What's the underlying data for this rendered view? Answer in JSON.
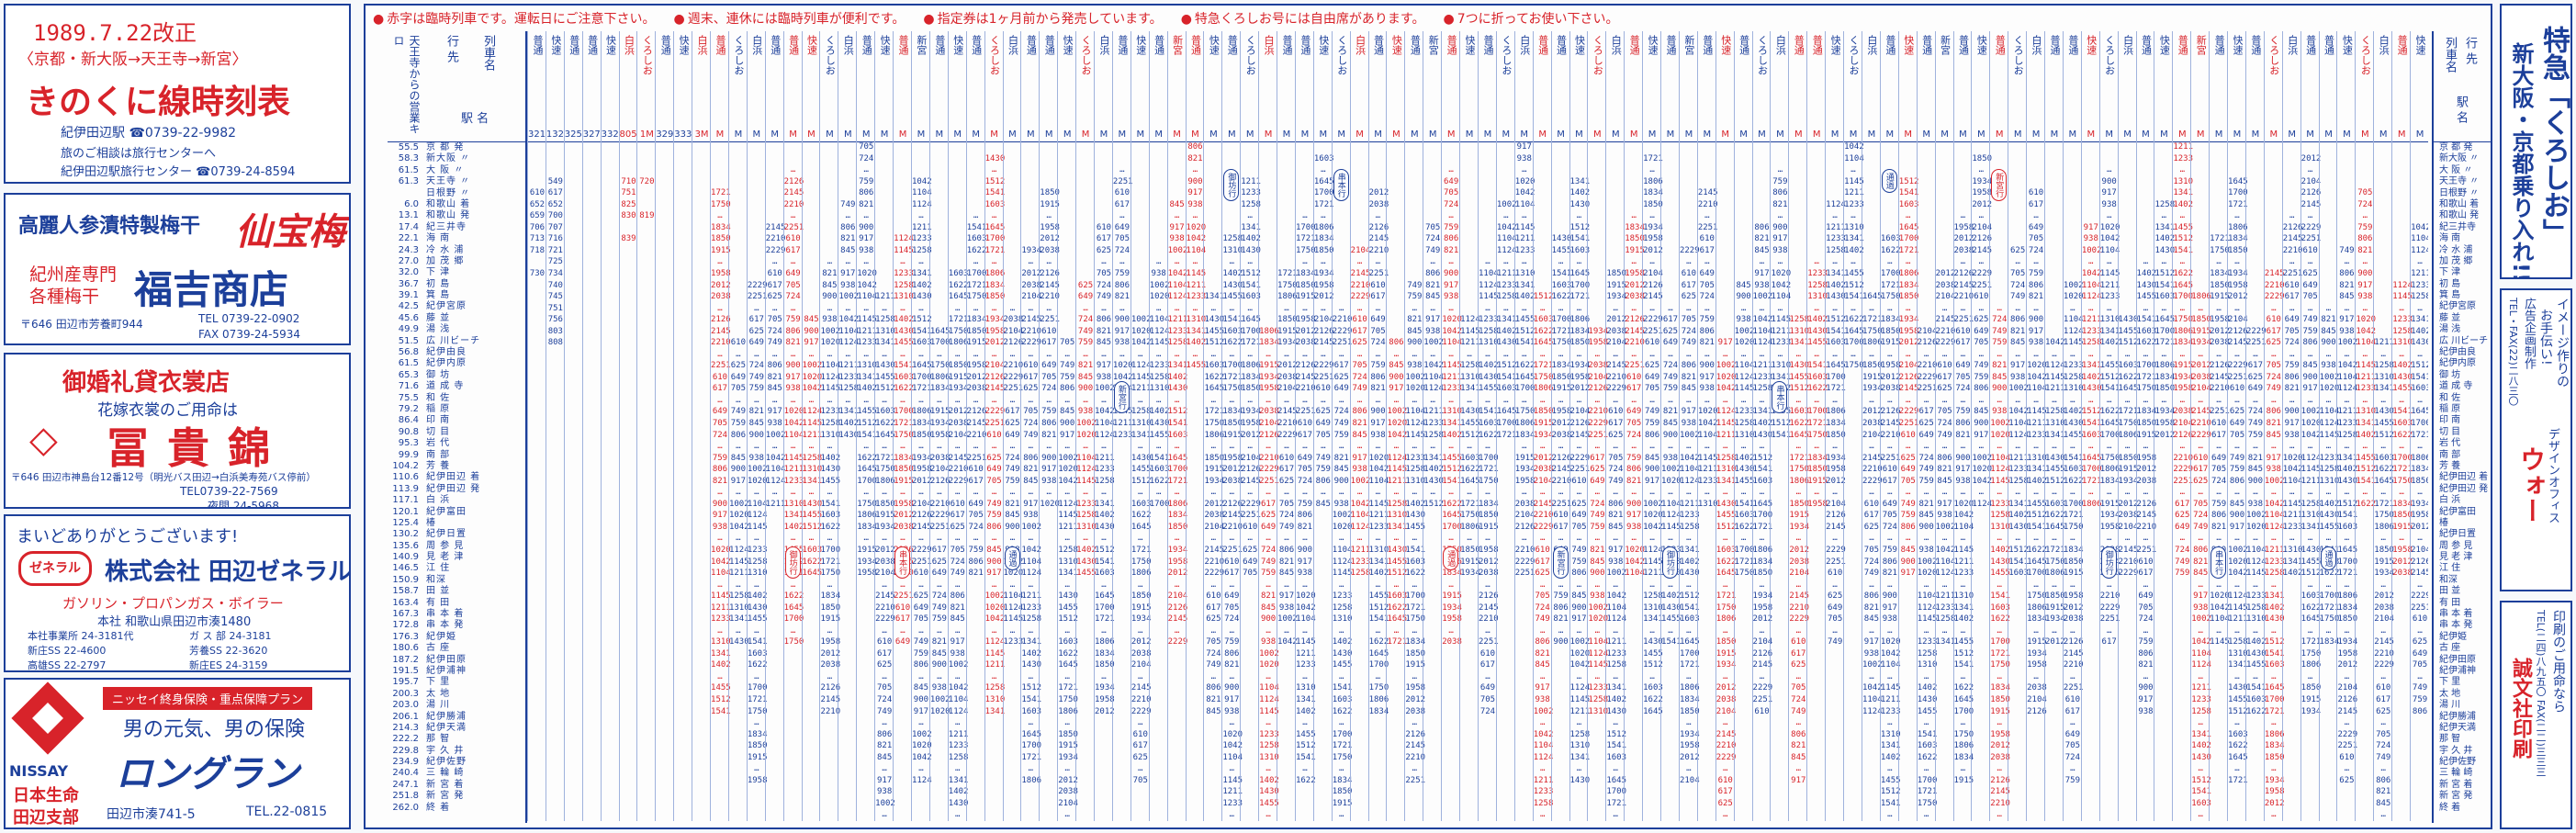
{
  "colors": {
    "blue": "#1c3f9a",
    "red": "#d8232a"
  },
  "header": {
    "date": "1989.7.22改正",
    "route_sub": "〈京都・新大阪→天王寺→新宮〉",
    "title": "きのくに線時刻表",
    "station_contact": "紀伊田辺駅 ☎0739-22-9982",
    "travel_note": "旅のご相談は旅行センターへ",
    "travel_center": "紀伊田辺駅旅行センター ☎0739-24-8594"
  },
  "ads": {
    "umeboshi": {
      "tagline": "高麗人参漬特製梅干",
      "brand": "仙宝梅",
      "shop_label_1": "紀州産専門",
      "shop_label_2": "各種梅干",
      "shop_name": "福吉商店",
      "address": "〒646 田辺市芳養町944",
      "tel": "TEL 0739-22-0902",
      "fax": "FAX 0739-24-5934"
    },
    "kimono": {
      "heading": "御婚礼貸衣裳店",
      "subheading": "花嫁衣裳のご用命は",
      "shop_name": "冨貴錦",
      "address": "〒646 田辺市神島台12番12号（明光バス田辺→白浜美寿苑バス停前）",
      "tel": "TEL0739-22-7569",
      "tel2": "夜間 24-5968"
    },
    "general": {
      "greeting": "まいどありがとうございます!",
      "company": "株式会社 田辺ゼネラル",
      "logo": "ゼネラル",
      "products": "ガソリン・プロパンガス・ボイラー",
      "head_office": "本社 和歌山県田辺市湊1480",
      "branches": [
        "本社事業所 24-3181代",
        "ガ ス 部 24-3181",
        "新庄SS 22-4600",
        "芳養SS 22-3620",
        "高雄SS 22-2797",
        "新庄ES 24-3159"
      ]
    },
    "nissay": {
      "plan": "ニッセイ終身保険・重点保障プラン",
      "slogan": "男の元気、男の保険",
      "product": "ロングラン",
      "brand": "NISSAY",
      "company": "日本生命",
      "branch": "田辺支部",
      "address": "田辺市湊741-5",
      "tel": "TEL.22-0815"
    }
  },
  "notes": [
    "赤字は臨時列車です。運転日にご注意下さい。",
    "週末、連休には臨時列車が便利です。",
    "指定券は1ヶ月前から発売しています。",
    "特急くろしお号には自由席があります。",
    "7つに折ってお使い下さい。"
  ],
  "timetable": {
    "origin_label": "行 先",
    "train_name_label": "列車名",
    "station_label": "駅 名",
    "origin_dep_label": "天王寺からの営業キロ",
    "stations": [
      {
        "km": "55.5",
        "name": "京 都 発"
      },
      {
        "km": "58.3",
        "name": "新大阪 〃"
      },
      {
        "km": "61.5",
        "name": "大 阪 〃"
      },
      {
        "km": "61.3",
        "name": "天王寺 〃"
      },
      {
        "km": "",
        "name": "日根野 〃"
      },
      {
        "km": "6.0",
        "name": "和歌山 着"
      },
      {
        "km": "13.1",
        "name": "和歌山 発"
      },
      {
        "km": "17.4",
        "name": "紀三井寺"
      },
      {
        "km": "22.1",
        "name": "海 南"
      },
      {
        "km": "24.3",
        "name": "冷 水 浦"
      },
      {
        "km": "27.0",
        "name": "加 茂 郷"
      },
      {
        "km": "32.0",
        "name": "下 津"
      },
      {
        "km": "36.7",
        "name": "初 島"
      },
      {
        "km": "39.1",
        "name": "箕 島"
      },
      {
        "km": "42.5",
        "name": "紀伊宮原"
      },
      {
        "km": "45.6",
        "name": "藤 並"
      },
      {
        "km": "49.9",
        "name": "湯 浅"
      },
      {
        "km": "51.5",
        "name": "広 川ビーチ"
      },
      {
        "km": "56.8",
        "name": "紀伊由良"
      },
      {
        "km": "61.5",
        "name": "紀伊内原"
      },
      {
        "km": "65.3",
        "name": "御 坊"
      },
      {
        "km": "71.6",
        "name": "道 成 寺"
      },
      {
        "km": "75.5",
        "name": "和 佐"
      },
      {
        "km": "79.2",
        "name": "稲 原"
      },
      {
        "km": "86.4",
        "name": "印 南"
      },
      {
        "km": "90.8",
        "name": "切 目"
      },
      {
        "km": "95.3",
        "name": "岩 代"
      },
      {
        "km": "99.9",
        "name": "南 部"
      },
      {
        "km": "104.2",
        "name": "芳 養"
      },
      {
        "km": "110.6",
        "name": "紀伊田辺 着"
      },
      {
        "km": "113.9",
        "name": "紀伊田辺 発"
      },
      {
        "km": "117.1",
        "name": "白 浜"
      },
      {
        "km": "120.1",
        "name": "紀伊富田"
      },
      {
        "km": "125.4",
        "name": "椿"
      },
      {
        "km": "130.2",
        "name": "紀伊日置"
      },
      {
        "km": "135.6",
        "name": "周 参 見"
      },
      {
        "km": "140.9",
        "name": "見 老 津"
      },
      {
        "km": "146.5",
        "name": "江 住"
      },
      {
        "km": "150.9",
        "name": "和深"
      },
      {
        "km": "158.7",
        "name": "田 並"
      },
      {
        "km": "163.4",
        "name": "有 田"
      },
      {
        "km": "167.3",
        "name": "串 本 着"
      },
      {
        "km": "172.8",
        "name": "串 本 発"
      },
      {
        "km": "176.3",
        "name": "紀伊姫"
      },
      {
        "km": "180.6",
        "name": "古 座"
      },
      {
        "km": "187.2",
        "name": "紀伊田原"
      },
      {
        "km": "191.5",
        "name": "紀伊浦神"
      },
      {
        "km": "195.7",
        "name": "下 里"
      },
      {
        "km": "200.3",
        "name": "太 地"
      },
      {
        "km": "203.0",
        "name": "湯 川"
      },
      {
        "km": "206.1",
        "name": "紀伊勝浦"
      },
      {
        "km": "214.3",
        "name": "紀伊天満"
      },
      {
        "km": "222.2",
        "name": "那 智"
      },
      {
        "km": "229.8",
        "name": "宇 久 井"
      },
      {
        "km": "234.9",
        "name": "紀伊佐野"
      },
      {
        "km": "240.4",
        "name": "三 輪 崎"
      },
      {
        "km": "247.1",
        "name": "新 宮 着"
      },
      {
        "km": "251.8",
        "name": "新 宮 発"
      },
      {
        "km": "262.0",
        "name": "終 着"
      }
    ],
    "trains": [
      {
        "kind": "普通",
        "num": "321M",
        "color": "blue",
        "times": [
          "",
          "",
          "",
          "",
          "610",
          "652",
          "659",
          "706",
          "713",
          "718",
          "",
          "730",
          "",
          "",
          "",
          "",
          "",
          "",
          "",
          "",
          "",
          "",
          "",
          "",
          "",
          "",
          "",
          "",
          "",
          "",
          "",
          "",
          "",
          "",
          "",
          "",
          "",
          "",
          "",
          "",
          "",
          "",
          "",
          "",
          "",
          "",
          "",
          "",
          "",
          "",
          "",
          "",
          "",
          "",
          "",
          "",
          "",
          "",
          ""
        ]
      },
      {
        "kind": "快速",
        "num": "1323M",
        "color": "blue",
        "times": [
          "",
          "",
          "",
          "549",
          "617",
          "652",
          "700",
          "707",
          "716",
          "721",
          "725",
          "734",
          "740",
          "745",
          "751",
          "756",
          "803",
          "808",
          "",
          "",
          "",
          "",
          "",
          "",
          "",
          "",
          "",
          "",
          "",
          "",
          "",
          "",
          "",
          "",
          "",
          "",
          "",
          "",
          "",
          "",
          "",
          "",
          "",
          "",
          "",
          "",
          "",
          "",
          "",
          "",
          "",
          "",
          "",
          "",
          "",
          "",
          ""
        ]
      },
      {
        "kind": "普通",
        "num": "325M",
        "color": "blue",
        "times": [
          "",
          "",
          "",
          "",
          "",
          "",
          "",
          "",
          "",
          "",
          "",
          "",
          "",
          "",
          "",
          "",
          "",
          "",
          "",
          "",
          "",
          "",
          "",
          "",
          "",
          "",
          "",
          "",
          "",
          "",
          "",
          "",
          "",
          "",
          "",
          "",
          "",
          "",
          "",
          "",
          "",
          "",
          "",
          "",
          "",
          "",
          "",
          "",
          "",
          "",
          "",
          "",
          "",
          "",
          "",
          "",
          "",
          "",
          ""
        ]
      },
      {
        "kind": "普通",
        "num": "327M",
        "color": "blue",
        "times": [
          "",
          "",
          "",
          "",
          "",
          "",
          "",
          "",
          "",
          "",
          "",
          "",
          "",
          "",
          "",
          "",
          "",
          "",
          "",
          "",
          "",
          "",
          "",
          "",
          "",
          "",
          "",
          "",
          "",
          "",
          "",
          "",
          "",
          "",
          "",
          "",
          "",
          "",
          "",
          "",
          "",
          "",
          "",
          "",
          "",
          "",
          "",
          "",
          "",
          "",
          "",
          "",
          "",
          "",
          "",
          "",
          "",
          "",
          ""
        ]
      },
      {
        "kind": "快速",
        "num": "3323M",
        "color": "blue",
        "times": [
          "",
          "",
          "",
          "",
          "",
          "",
          "",
          "",
          "",
          "",
          "",
          "",
          "",
          "",
          "",
          "",
          "",
          "",
          "",
          "",
          "",
          "",
          "",
          "",
          "",
          "",
          "",
          "",
          "",
          "",
          "",
          "",
          "",
          "",
          "",
          "",
          "",
          "",
          "",
          "",
          "",
          "",
          "",
          "",
          "",
          "",
          "",
          "",
          "",
          "",
          "",
          "",
          "",
          "",
          "",
          "",
          "",
          "",
          ""
        ]
      },
      {
        "kind": "白浜",
        "num": "8051M",
        "color": "red",
        "times": [
          "",
          "",
          "",
          "710",
          "751",
          "825",
          "830",
          "",
          "839",
          "",
          "",
          "",
          "",
          "",
          "",
          "",
          "",
          "",
          "",
          "",
          "",
          "",
          "",
          "",
          "",
          "",
          "",
          "",
          "",
          "",
          "",
          "",
          "",
          "",
          "",
          "",
          "",
          "",
          "",
          "",
          "",
          "",
          "",
          "",
          "",
          "",
          "",
          "",
          "",
          "",
          "",
          "",
          "",
          "",
          ""
        ]
      },
      {
        "kind": "くろしお",
        "num": "1M",
        "color": "red",
        "times": [
          "",
          "",
          "",
          "720",
          "",
          "",
          "819",
          "",
          "",
          "",
          "",
          "",
          "",
          "",
          "",
          "",
          "",
          "",
          "",
          "",
          "",
          "",
          "",
          "",
          "",
          "",
          "",
          "",
          "",
          "",
          "",
          "",
          "",
          "",
          "",
          "",
          "",
          "",
          "",
          "",
          "",
          "",
          "",
          "",
          "",
          "",
          "",
          "",
          "",
          "",
          "",
          "",
          "",
          "",
          "",
          "",
          ""
        ]
      },
      {
        "kind": "普通",
        "num": "329M",
        "color": "blue",
        "times": [
          "",
          "",
          "",
          "",
          "",
          "",
          "",
          "",
          "",
          "",
          "",
          "",
          "",
          "",
          "",
          "",
          "",
          "",
          "",
          "",
          "",
          "",
          "",
          "",
          "",
          "",
          "",
          "",
          "",
          "",
          "",
          "",
          "",
          "",
          "",
          "",
          "",
          "",
          "",
          "",
          "",
          "",
          "",
          "",
          "",
          "",
          "",
          "",
          "",
          "",
          "",
          "",
          "",
          "",
          "",
          "",
          "",
          "",
          ""
        ]
      },
      {
        "kind": "快速",
        "num": "333M",
        "color": "blue",
        "times": [
          "",
          "",
          "",
          "",
          "",
          "",
          "",
          "",
          "",
          "",
          "",
          "",
          "",
          "",
          "",
          "",
          "",
          "",
          "",
          "",
          "",
          "",
          "",
          "",
          "",
          "",
          "",
          "",
          "",
          "",
          "",
          "",
          "",
          "",
          "",
          "",
          "",
          "",
          "",
          "",
          "",
          "",
          "",
          "",
          "",
          "",
          "",
          "",
          "",
          "",
          "",
          "",
          "",
          "",
          "",
          "",
          "",
          "",
          ""
        ]
      },
      {
        "kind": "白浜",
        "num": "3M",
        "color": "red",
        "times": [
          "",
          "",
          "",
          "",
          "",
          "",
          "",
          "",
          "",
          "",
          "",
          "",
          "",
          "",
          "",
          "",
          "",
          "",
          "",
          "",
          "",
          "",
          "",
          "",
          "",
          "",
          "",
          "",
          "",
          "",
          "",
          "",
          "",
          "",
          "",
          "",
          "",
          "",
          "",
          "",
          "",
          "",
          "",
          "",
          "",
          "",
          "",
          "",
          "",
          "",
          "",
          "",
          "",
          "",
          "",
          "",
          "",
          "",
          ""
        ]
      }
    ],
    "generic_columns": 94,
    "sample_times": [
      "610",
      "617",
      "625",
      "649",
      "705",
      "724",
      "749",
      "759",
      "806",
      "821",
      "845",
      "900",
      "917",
      "938",
      "1002",
      "1020",
      "1042",
      "1104",
      "1124",
      "1145",
      "1211",
      "1233",
      "1258",
      "1310",
      "1341",
      "1402",
      "1430",
      "1455",
      "1512",
      "1541",
      "1603",
      "1622",
      "1645",
      "1700",
      "1721",
      "1750",
      "1806",
      "1834",
      "1850",
      "1915",
      "1934",
      "1958",
      "2012",
      "2038",
      "2104",
      "2126",
      "2145",
      "2210",
      "2229",
      "2251"
    ],
    "oval_labels": [
      "新宮行",
      "紀伊田辺行",
      "通過",
      "白浜行",
      "串本行",
      "紀伊勝浦行",
      "御坊行",
      "和歌山行"
    ],
    "right_origin_label": "行 先",
    "right_train_label": "列車名",
    "right_station_label": "駅 名"
  },
  "right_panel": {
    "headline": "特急「くろしお」",
    "headline2": "新大阪・京都乗り入れ!!",
    "ad1_line1": "イメージ作りの",
    "ad1_line2": "お手伝い!",
    "ad1_line3": "広告企画制作",
    "ad1_tel": "TEL・FAX(22)二八三〇",
    "ad1_brand": "ウォー",
    "ad1_note": "デザインオフィス",
    "printer_note": "印刷のご用命なら",
    "printer_tel": "TEL(二四)八九五〇 FAX(二二)三三三",
    "printer_name": "誠文社印刷"
  }
}
